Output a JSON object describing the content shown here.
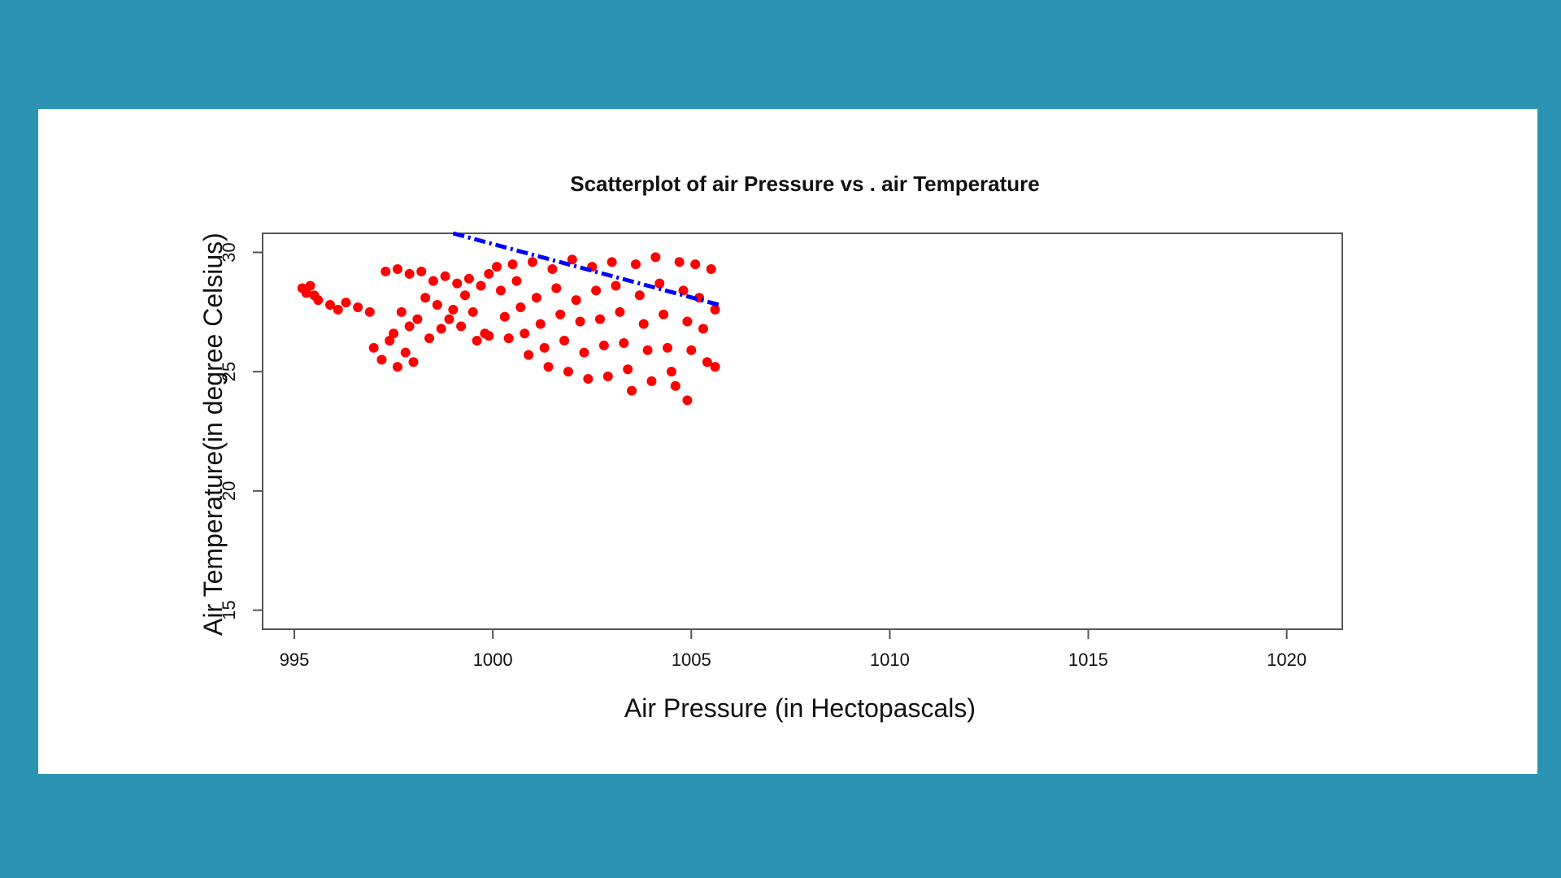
{
  "colors": {
    "background": "#2a94b2",
    "panel": "#ffffff",
    "points": "#ff0000",
    "trend_line": "#0000ff",
    "axis": "#555555"
  },
  "chart_data": {
    "type": "scatter",
    "title": "Scatterplot of air Pressure vs . air Temperature",
    "xlabel": "Air Pressure (in Hectopascals)",
    "ylabel": "Air Temperature(in degree Celsius)",
    "xlim": [
      994.2,
      1021.4
    ],
    "ylim": [
      14.2,
      30.8
    ],
    "x_ticks": [
      995,
      1000,
      1005,
      1010,
      1015,
      1020
    ],
    "x_tick_labels": [
      "995",
      "1000",
      "1005",
      "1010",
      "1015",
      "1020"
    ],
    "y_ticks": [
      15,
      20,
      25,
      30
    ],
    "y_tick_labels": [
      "15",
      "20",
      "25",
      "30"
    ],
    "grid": false,
    "legend": "none",
    "series": [
      {
        "kind": "points",
        "color": "#ff0000",
        "points": [
          [
            995.2,
            28.5
          ],
          [
            995.3,
            28.3
          ],
          [
            995.5,
            28.2
          ],
          [
            995.4,
            28.6
          ],
          [
            995.6,
            28.0
          ],
          [
            995.9,
            27.8
          ],
          [
            996.1,
            27.6
          ],
          [
            996.3,
            27.9
          ],
          [
            996.6,
            27.7
          ],
          [
            996.9,
            27.5
          ],
          [
            997.0,
            26.0
          ],
          [
            997.2,
            25.5
          ],
          [
            997.4,
            26.3
          ],
          [
            997.6,
            25.2
          ],
          [
            997.8,
            25.8
          ],
          [
            998.0,
            25.4
          ],
          [
            997.5,
            26.6
          ],
          [
            997.9,
            26.9
          ],
          [
            998.1,
            27.2
          ],
          [
            997.7,
            27.5
          ],
          [
            997.3,
            29.2
          ],
          [
            997.6,
            29.3
          ],
          [
            997.9,
            29.1
          ],
          [
            998.2,
            29.2
          ],
          [
            998.5,
            28.8
          ],
          [
            998.8,
            29.0
          ],
          [
            999.1,
            28.7
          ],
          [
            999.4,
            28.9
          ],
          [
            999.7,
            28.6
          ],
          [
            999.9,
            29.1
          ],
          [
            998.3,
            28.1
          ],
          [
            998.6,
            27.8
          ],
          [
            998.9,
            27.2
          ],
          [
            999.2,
            26.9
          ],
          [
            999.5,
            27.5
          ],
          [
            999.8,
            26.6
          ],
          [
            998.4,
            26.4
          ],
          [
            998.7,
            26.8
          ],
          [
            999.0,
            27.6
          ],
          [
            999.3,
            28.2
          ],
          [
            999.6,
            26.3
          ],
          [
            999.9,
            26.5
          ],
          [
            1000.1,
            29.4
          ],
          [
            1000.2,
            28.4
          ],
          [
            1000.3,
            27.3
          ],
          [
            1000.4,
            26.4
          ],
          [
            1000.5,
            29.5
          ],
          [
            1000.6,
            28.8
          ],
          [
            1000.7,
            27.7
          ],
          [
            1000.8,
            26.6
          ],
          [
            1000.9,
            25.7
          ],
          [
            1001.0,
            29.6
          ],
          [
            1001.1,
            28.1
          ],
          [
            1001.2,
            27.0
          ],
          [
            1001.3,
            26.0
          ],
          [
            1001.4,
            25.2
          ],
          [
            1001.5,
            29.3
          ],
          [
            1001.6,
            28.5
          ],
          [
            1001.7,
            27.4
          ],
          [
            1001.8,
            26.3
          ],
          [
            1001.9,
            25.0
          ],
          [
            1002.0,
            29.7
          ],
          [
            1002.1,
            28.0
          ],
          [
            1002.2,
            27.1
          ],
          [
            1002.3,
            25.8
          ],
          [
            1002.4,
            24.7
          ],
          [
            1002.5,
            29.4
          ],
          [
            1002.6,
            28.4
          ],
          [
            1002.7,
            27.2
          ],
          [
            1002.8,
            26.1
          ],
          [
            1002.9,
            24.8
          ],
          [
            1003.0,
            29.6
          ],
          [
            1003.1,
            28.6
          ],
          [
            1003.2,
            27.5
          ],
          [
            1003.3,
            26.2
          ],
          [
            1003.4,
            25.1
          ],
          [
            1003.5,
            24.2
          ],
          [
            1003.6,
            29.5
          ],
          [
            1003.7,
            28.2
          ],
          [
            1003.8,
            27.0
          ],
          [
            1003.9,
            25.9
          ],
          [
            1004.0,
            24.6
          ],
          [
            1004.1,
            29.8
          ],
          [
            1004.2,
            28.7
          ],
          [
            1004.3,
            27.4
          ],
          [
            1004.4,
            26.0
          ],
          [
            1004.5,
            25.0
          ],
          [
            1004.6,
            24.4
          ],
          [
            1004.7,
            29.6
          ],
          [
            1004.8,
            28.4
          ],
          [
            1004.9,
            27.1
          ],
          [
            1005.0,
            25.9
          ],
          [
            1004.9,
            23.8
          ],
          [
            1005.1,
            29.5
          ],
          [
            1005.2,
            28.1
          ],
          [
            1005.3,
            26.8
          ],
          [
            1005.4,
            25.4
          ],
          [
            1005.5,
            29.3
          ],
          [
            1005.6,
            27.6
          ],
          [
            1005.6,
            25.2
          ]
        ]
      },
      {
        "kind": "trend",
        "color": "#0000ff",
        "points": [
          [
            999.0,
            30.8
          ],
          [
            1005.7,
            27.8
          ]
        ]
      }
    ]
  }
}
